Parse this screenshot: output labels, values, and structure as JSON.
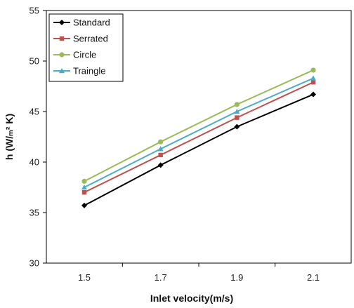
{
  "chart_data": {
    "type": "line",
    "title": "",
    "xlabel": "Inlet velocity(m/s)",
    "ylabel": "h (W/ₘ² K)",
    "x": [
      1.5,
      1.7,
      1.9,
      2.1
    ],
    "x_tick_labels": [
      "1.5",
      "1.7",
      "1.9",
      "2.1"
    ],
    "ylim": [
      30,
      55
    ],
    "y_ticks": [
      30,
      35,
      40,
      45,
      50,
      55
    ],
    "grid": false,
    "legend_position": "top-left",
    "series": [
      {
        "name": "Standard",
        "values": [
          35.7,
          39.7,
          43.5,
          46.7
        ],
        "color": "#000000",
        "marker": "diamond"
      },
      {
        "name": "Serrated",
        "values": [
          37.0,
          40.7,
          44.4,
          47.9
        ],
        "color": "#c0504d",
        "marker": "square"
      },
      {
        "name": "Circle",
        "values": [
          38.1,
          42.0,
          45.7,
          49.1
        ],
        "color": "#9bbb59",
        "marker": "circle"
      },
      {
        "name": "Traingle",
        "values": [
          37.5,
          41.3,
          45.0,
          48.3
        ],
        "color": "#4bacc6",
        "marker": "triangle"
      }
    ]
  }
}
